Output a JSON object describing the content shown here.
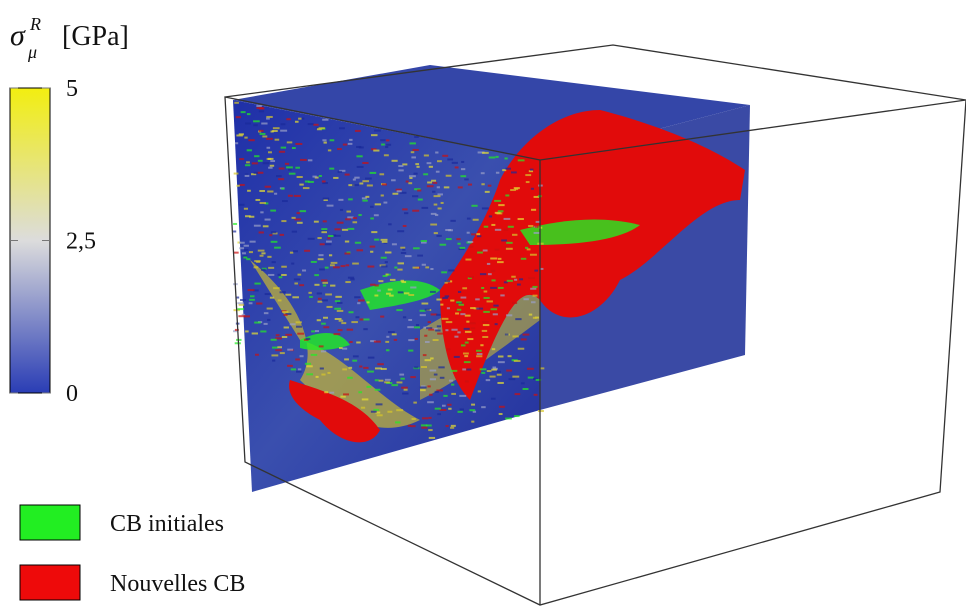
{
  "colorbar": {
    "symbol": "σ",
    "subscript": "μ",
    "superscript": "R",
    "unit": "[GPa]",
    "lim": [
      0,
      5
    ],
    "ticks": [
      {
        "value": 0,
        "label": "0"
      },
      {
        "value": 2.5,
        "label": "2,5"
      },
      {
        "value": 5,
        "label": "5"
      }
    ],
    "colors": [
      "#2a3db5",
      "#dcdcdc",
      "#f2ee10"
    ]
  },
  "legend": [
    {
      "label": "CB initiales",
      "color": "#22ee22"
    },
    {
      "label": "Nouvelles CB",
      "color": "#ee0a0a"
    }
  ]
}
